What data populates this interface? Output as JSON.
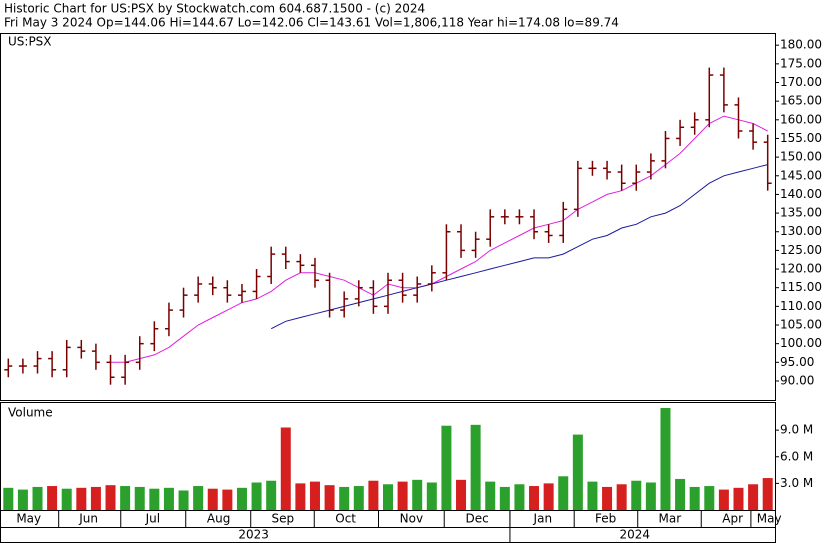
{
  "chart_data": [
    {
      "type": "ohlc",
      "title": "Historic Chart for US:PSX by Stockwatch.com 604.687.1500 - (c) 2024",
      "subtitle": "Fri May  3 2024  Op=144.06  Hi=144.67  Lo=142.06  Cl=143.61  Vol=1,806,118  Year hi=174.08  lo=89.74",
      "symbol": "US:PSX",
      "color": "#7a0000",
      "xlim": [
        0,
        53
      ],
      "ylim": [
        84.9,
        183
      ],
      "yticks": [
        {
          "value": 90,
          "label": "90.00"
        },
        {
          "value": 95,
          "label": "95.00"
        },
        {
          "value": 100,
          "label": "100.00"
        },
        {
          "value": 105,
          "label": "105.00"
        },
        {
          "value": 110,
          "label": "110.00"
        },
        {
          "value": 115,
          "label": "115.00"
        },
        {
          "value": 120,
          "label": "120.00"
        },
        {
          "value": 125,
          "label": "125.00"
        },
        {
          "value": 130,
          "label": "130.00"
        },
        {
          "value": 135,
          "label": "135.00"
        },
        {
          "value": 140,
          "label": "140.00"
        },
        {
          "value": 145,
          "label": "145.00"
        },
        {
          "value": 150,
          "label": "150.00"
        },
        {
          "value": 155,
          "label": "155.00"
        },
        {
          "value": 160,
          "label": "160.00"
        },
        {
          "value": 165,
          "label": "165.00"
        },
        {
          "value": 170,
          "label": "170.00"
        },
        {
          "value": 175,
          "label": "175.00"
        },
        {
          "value": 180,
          "label": "180.00"
        }
      ],
      "open": [
        93,
        94,
        94,
        96,
        93,
        99,
        98,
        95,
        91,
        95,
        100,
        104,
        109,
        113,
        116,
        115,
        113,
        114,
        118,
        124,
        122,
        121,
        117,
        109,
        112,
        115,
        110,
        117,
        113,
        116,
        119,
        130,
        125,
        128,
        134,
        134,
        134,
        130,
        129,
        136,
        147,
        147,
        146,
        143,
        146,
        149,
        155,
        158,
        160,
        172,
        164,
        157,
        154
      ],
      "high": [
        96,
        96,
        98,
        98,
        101,
        101,
        100,
        97,
        97,
        102,
        106,
        111,
        115,
        118,
        118,
        117,
        116,
        120,
        126,
        126,
        124,
        123,
        119,
        114,
        117,
        117,
        119,
        119,
        118,
        121,
        132,
        132,
        130,
        136,
        136,
        136,
        136,
        132,
        138,
        149,
        149,
        149,
        148,
        148,
        151,
        157,
        160,
        162,
        174,
        174,
        166,
        159,
        156
      ],
      "low": [
        91,
        92,
        92,
        91,
        91,
        96,
        93,
        89,
        89,
        93,
        98,
        102,
        107,
        111,
        113,
        111,
        111,
        112,
        116,
        120,
        119,
        115,
        107,
        107,
        110,
        108,
        108,
        111,
        111,
        114,
        117,
        123,
        123,
        126,
        132,
        132,
        128,
        127,
        127,
        134,
        145,
        144,
        141,
        141,
        144,
        147,
        153,
        156,
        158,
        162,
        155,
        152,
        141
      ],
      "close": [
        94,
        94,
        96,
        93,
        99,
        98,
        95,
        91,
        95,
        100,
        104,
        109,
        113,
        116,
        115,
        113,
        114,
        118,
        124,
        122,
        121,
        117,
        109,
        112,
        115,
        110,
        117,
        113,
        116,
        119,
        130,
        125,
        128,
        134,
        134,
        134,
        130,
        129,
        136,
        147,
        147,
        146,
        143,
        146,
        149,
        155,
        158,
        160,
        172,
        164,
        157,
        154,
        143
      ],
      "series": [
        {
          "color": "#e020e0",
          "values": [
            null,
            null,
            null,
            null,
            null,
            null,
            null,
            95,
            95,
            96,
            97,
            99,
            102,
            105,
            107,
            109,
            111,
            112,
            114,
            117,
            119,
            119,
            118,
            117,
            115,
            113,
            116,
            115,
            115,
            116,
            118,
            120,
            122,
            125,
            127,
            129,
            131,
            132,
            133,
            136,
            138,
            140,
            141,
            143,
            145,
            148,
            151,
            155,
            159,
            161,
            160,
            159,
            157
          ]
        },
        {
          "color": "#1a1a9a",
          "values": [
            null,
            null,
            null,
            null,
            null,
            null,
            null,
            null,
            null,
            null,
            null,
            null,
            null,
            null,
            null,
            null,
            null,
            null,
            104,
            106,
            107,
            108,
            109,
            110,
            111,
            112,
            113,
            114,
            115,
            116,
            117,
            118,
            119,
            120,
            121,
            122,
            123,
            123,
            124,
            126,
            128,
            129,
            131,
            132,
            134,
            135,
            137,
            140,
            143,
            145,
            146,
            147,
            148
          ]
        }
      ]
    },
    {
      "type": "bar",
      "title": "Volume",
      "up_color": "#2ca02c",
      "down_color": "#d62020",
      "xlim": [
        0,
        53
      ],
      "ylim": [
        0,
        12.06
      ],
      "yticks": [
        {
          "value": 3,
          "label": "3.0 M"
        },
        {
          "value": 6,
          "label": "6.0 M"
        },
        {
          "value": 9,
          "label": "9.0 M"
        }
      ],
      "values": [
        2.5,
        2.3,
        2.6,
        2.7,
        2.4,
        2.5,
        2.6,
        2.8,
        2.7,
        2.6,
        2.4,
        2.5,
        2.2,
        2.7,
        2.4,
        2.3,
        2.5,
        3.1,
        3.3,
        9.3,
        3.0,
        3.2,
        2.8,
        2.6,
        2.7,
        3.3,
        2.9,
        3.2,
        3.4,
        3.1,
        9.5,
        3.4,
        9.6,
        3.2,
        2.6,
        2.9,
        2.7,
        3.0,
        3.8,
        8.5,
        3.2,
        2.6,
        2.9,
        3.3,
        3.1,
        11.5,
        3.5,
        2.6,
        2.7,
        2.3,
        2.5,
        2.9,
        3.6
      ],
      "xticks": [
        {
          "value": 1.9,
          "label": "May"
        },
        {
          "value": 6.0,
          "label": "Jun"
        },
        {
          "value": 10.4,
          "label": "Jul"
        },
        {
          "value": 14.9,
          "label": "Aug"
        },
        {
          "value": 19.3,
          "label": "Sep"
        },
        {
          "value": 23.6,
          "label": "Oct"
        },
        {
          "value": 28.1,
          "label": "Nov"
        },
        {
          "value": 32.6,
          "label": "Dec"
        },
        {
          "value": 37.1,
          "label": "Jan"
        },
        {
          "value": 41.4,
          "label": "Feb"
        },
        {
          "value": 45.8,
          "label": "Mar"
        },
        {
          "value": 50.1,
          "label": "Apr"
        },
        {
          "value": 52.6,
          "label": "May"
        }
      ],
      "year_ticks": [
        {
          "value": 17.3,
          "label": "2023"
        },
        {
          "value": 43.4,
          "label": "2024"
        }
      ]
    }
  ]
}
